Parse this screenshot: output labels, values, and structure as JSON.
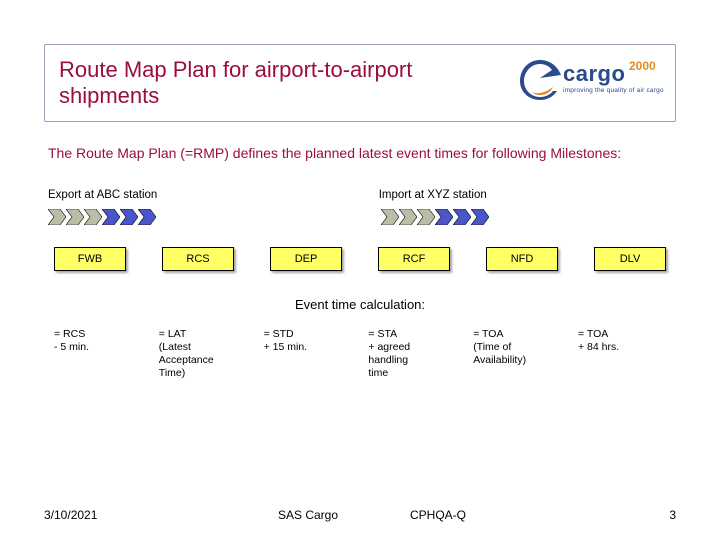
{
  "title": "Route Map Plan for airport-to-airport shipments",
  "logo": {
    "word": "cargo",
    "year": "2000",
    "tagline": "improving the quality of air cargo",
    "swoosh_color": "#2a4b8d",
    "accent_color": "#e38b1e"
  },
  "intro": "The Route Map Plan (=RMP) defines the planned latest event times for following Milestones:",
  "stations": {
    "export": "Export at ABC station",
    "import": "Import at XYZ station"
  },
  "chevrons": {
    "export_colors": [
      "#b9bfa6",
      "#b9bfa6",
      "#b9bfa6",
      "#4a55c9",
      "#4a55c9",
      "#4a55c9"
    ],
    "import_colors": [
      "#b9bfa6",
      "#b9bfa6",
      "#b9bfa6",
      "#4a55c9",
      "#4a55c9",
      "#4a55c9"
    ],
    "w": 18,
    "h": 16,
    "gap": 0
  },
  "milestones": [
    {
      "code": "FWB",
      "calc": "= RCS\n- 5 min."
    },
    {
      "code": "RCS",
      "calc": "= LAT\n(Latest\nAcceptance\nTime)"
    },
    {
      "code": "DEP",
      "calc": "= STD\n+ 15 min."
    },
    {
      "code": "RCF",
      "calc": "= STA\n+ agreed\nhandling\ntime"
    },
    {
      "code": "NFD",
      "calc": "= TOA\n(Time of\nAvailability)"
    },
    {
      "code": "DLV",
      "calc": "= TOA\n+ 84 hrs."
    }
  ],
  "calc_title": "Event time calculation:",
  "footer": {
    "date": "3/10/2021",
    "mid1": "SAS Cargo",
    "mid2": "CPHQA-Q",
    "page": "3"
  },
  "colors": {
    "title": "#9c0e3a",
    "milestone_fill": "#ffff66",
    "milestone_border": "#000000"
  }
}
